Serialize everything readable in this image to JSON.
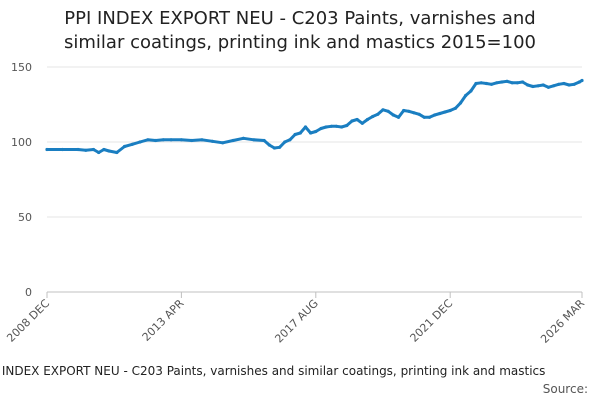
{
  "chart_data": {
    "type": "line",
    "title_line1": "PPI INDEX EXPORT NEU - C203 Paints, varnishes and",
    "title_line2": "similar coatings, printing ink and mastics 2015=100",
    "xlabel": "",
    "ylabel": "",
    "ylim": [
      0,
      150
    ],
    "y_ticks": [
      0,
      50,
      100,
      150
    ],
    "x_tick_labels": [
      "2008 DEC",
      "2013 APR",
      "2017 AUG",
      "2021 DEC",
      "2026 MAR"
    ],
    "x_range": [
      "2008-12",
      "2026-03"
    ],
    "grid": true,
    "legend_position": "bottom",
    "color": "#1a7ec1",
    "series": [
      {
        "name": "PPI INDEX EXPORT NEU - C203 Paints, varnishes and similar coatings, printing ink and mastics",
        "points": [
          [
            "2008-12",
            95.0
          ],
          [
            "2009-06",
            95.0
          ],
          [
            "2009-12",
            95.0
          ],
          [
            "2010-03",
            94.5
          ],
          [
            "2010-06",
            95.0
          ],
          [
            "2010-08",
            93.0
          ],
          [
            "2010-10",
            95.0
          ],
          [
            "2010-12",
            94.0
          ],
          [
            "2011-03",
            93.0
          ],
          [
            "2011-06",
            97.0
          ],
          [
            "2011-09",
            98.5
          ],
          [
            "2011-12",
            100.0
          ],
          [
            "2012-03",
            101.5
          ],
          [
            "2012-06",
            101.0
          ],
          [
            "2012-09",
            101.5
          ],
          [
            "2012-12",
            101.5
          ],
          [
            "2013-04",
            101.5
          ],
          [
            "2013-08",
            101.0
          ],
          [
            "2013-12",
            101.5
          ],
          [
            "2014-04",
            100.5
          ],
          [
            "2014-08",
            99.5
          ],
          [
            "2014-12",
            101.0
          ],
          [
            "2015-04",
            102.5
          ],
          [
            "2015-08",
            101.5
          ],
          [
            "2015-12",
            101.0
          ],
          [
            "2016-02",
            98.0
          ],
          [
            "2016-04",
            96.0
          ],
          [
            "2016-06",
            96.5
          ],
          [
            "2016-08",
            100.0
          ],
          [
            "2016-10",
            101.5
          ],
          [
            "2016-12",
            105.0
          ],
          [
            "2017-02",
            106.0
          ],
          [
            "2017-04",
            110.0
          ],
          [
            "2017-06",
            106.0
          ],
          [
            "2017-08",
            107.0
          ],
          [
            "2017-10",
            109.0
          ],
          [
            "2017-12",
            110.0
          ],
          [
            "2018-02",
            110.5
          ],
          [
            "2018-04",
            110.5
          ],
          [
            "2018-06",
            110.0
          ],
          [
            "2018-08",
            111.0
          ],
          [
            "2018-10",
            114.0
          ],
          [
            "2018-12",
            115.0
          ],
          [
            "2019-02",
            112.5
          ],
          [
            "2019-04",
            115.0
          ],
          [
            "2019-06",
            117.0
          ],
          [
            "2019-08",
            118.5
          ],
          [
            "2019-10",
            121.5
          ],
          [
            "2019-12",
            120.5
          ],
          [
            "2020-02",
            118.0
          ],
          [
            "2020-04",
            116.5
          ],
          [
            "2020-06",
            121.0
          ],
          [
            "2020-08",
            120.5
          ],
          [
            "2020-10",
            119.5
          ],
          [
            "2020-12",
            118.5
          ],
          [
            "2021-02",
            116.5
          ],
          [
            "2021-04",
            116.5
          ],
          [
            "2021-06",
            118.0
          ],
          [
            "2021-08",
            119.0
          ],
          [
            "2021-10",
            120.0
          ],
          [
            "2021-12",
            121.0
          ],
          [
            "2022-02",
            122.5
          ],
          [
            "2022-04",
            126.0
          ],
          [
            "2022-06",
            131.0
          ],
          [
            "2022-08",
            134.0
          ],
          [
            "2022-10",
            139.0
          ],
          [
            "2022-12",
            139.5
          ],
          [
            "2023-02",
            139.0
          ],
          [
            "2023-04",
            138.5
          ],
          [
            "2023-06",
            139.5
          ],
          [
            "2023-08",
            140.0
          ],
          [
            "2023-10",
            140.5
          ],
          [
            "2023-12",
            139.5
          ],
          [
            "2024-02",
            139.5
          ],
          [
            "2024-04",
            140.0
          ],
          [
            "2024-06",
            138.0
          ],
          [
            "2024-08",
            137.0
          ],
          [
            "2024-10",
            137.5
          ],
          [
            "2024-12",
            138.0
          ],
          [
            "2025-02",
            136.5
          ],
          [
            "2025-04",
            137.5
          ],
          [
            "2025-06",
            138.5
          ],
          [
            "2025-08",
            139.0
          ],
          [
            "2025-10",
            138.0
          ],
          [
            "2025-12",
            138.5
          ],
          [
            "2026-02",
            140.0
          ],
          [
            "2026-03",
            141.0
          ]
        ]
      }
    ]
  },
  "legend_label": "PPI INDEX EXPORT NEU - C203 Paints, varnishes and similar coatings, printing ink and mastics",
  "source_label": "Source:"
}
